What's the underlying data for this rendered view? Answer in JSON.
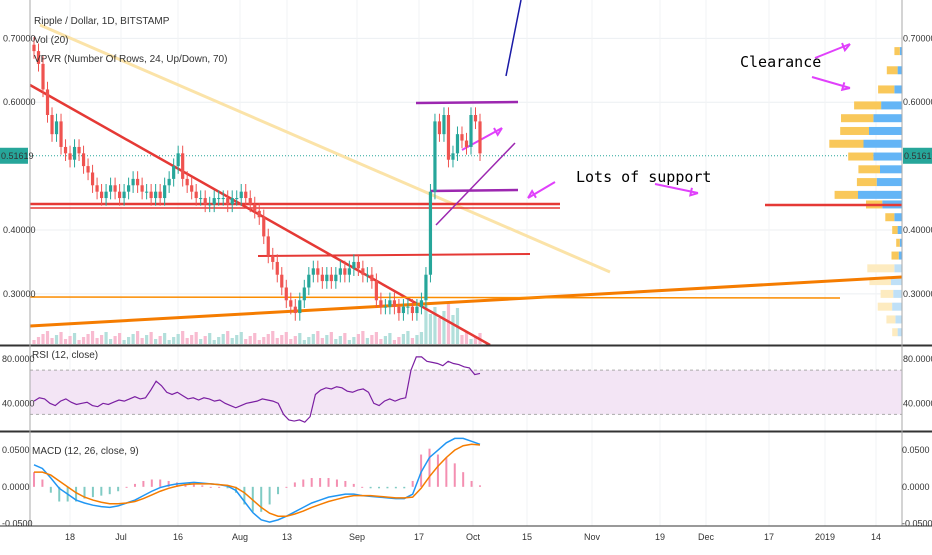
{
  "header": {
    "title": "Ripple / Dollar, 1D, BITSTAMP",
    "vol": "Vol (20)",
    "vpvr": "VPVR (Number Of Rows, 24, Up/Down, 70)",
    "rsi": "RSI (12, close)",
    "macd": "MACD (12, 26, close, 9)"
  },
  "price": {
    "last": "0.51619"
  },
  "annotations": {
    "clearance": "Clearance",
    "support": "Lots of support"
  },
  "colors": {
    "up": "#26a69a",
    "down": "#ef5350",
    "rsi": "#7b1fa2",
    "macd": "#2196f3",
    "signal": "#f57c00"
  },
  "chart_data": [
    {
      "type": "candlestick",
      "title": "Ripple / Dollar, 1D, BITSTAMP",
      "ylim": [
        0.22,
        0.76
      ],
      "y_ticks": [
        "0.70000",
        "0.60000",
        "0.40000",
        "0.30000"
      ],
      "x_ticks": [
        "18",
        "Jul",
        "16",
        "Aug",
        "13",
        "Sep",
        "17",
        "Oct",
        "15",
        "Nov",
        "19",
        "Dec",
        "17",
        "2019",
        "14"
      ],
      "close": [
        0.68,
        0.66,
        0.62,
        0.58,
        0.55,
        0.57,
        0.53,
        0.52,
        0.51,
        0.53,
        0.52,
        0.5,
        0.49,
        0.47,
        0.46,
        0.45,
        0.46,
        0.47,
        0.46,
        0.45,
        0.46,
        0.47,
        0.48,
        0.47,
        0.46,
        0.46,
        0.45,
        0.46,
        0.45,
        0.47,
        0.48,
        0.5,
        0.52,
        0.48,
        0.47,
        0.46,
        0.45,
        0.45,
        0.44,
        0.44,
        0.45,
        0.45,
        0.45,
        0.44,
        0.45,
        0.45,
        0.46,
        0.45,
        0.44,
        0.43,
        0.42,
        0.39,
        0.36,
        0.35,
        0.33,
        0.31,
        0.29,
        0.28,
        0.27,
        0.29,
        0.31,
        0.33,
        0.34,
        0.33,
        0.32,
        0.33,
        0.32,
        0.33,
        0.34,
        0.33,
        0.34,
        0.35,
        0.34,
        0.33,
        0.33,
        0.32,
        0.29,
        0.28,
        0.28,
        0.29,
        0.28,
        0.27,
        0.28,
        0.28,
        0.27,
        0.28,
        0.29,
        0.33,
        0.46,
        0.57,
        0.55,
        0.58,
        0.51,
        0.52,
        0.55,
        0.54,
        0.53,
        0.58,
        0.57,
        0.52
      ],
      "rsi": [
        42,
        45,
        44,
        40,
        38,
        42,
        44,
        41,
        39,
        40,
        41,
        38,
        37,
        40,
        39,
        41,
        43,
        42,
        44,
        46,
        44,
        45,
        52,
        60,
        56,
        50,
        48,
        50,
        47,
        44,
        45,
        43,
        45,
        44,
        42,
        43,
        40,
        38,
        36,
        38,
        40,
        41,
        42,
        44,
        43,
        42,
        40,
        30,
        25,
        24,
        25,
        23,
        28,
        48,
        52,
        54,
        53,
        55,
        54,
        51,
        50,
        52,
        53,
        50,
        40,
        38,
        42,
        44,
        42,
        44,
        45,
        70,
        82,
        82,
        78,
        77,
        76,
        74,
        78,
        76,
        75,
        73,
        72,
        66,
        67
      ],
      "rsi_ylim": [
        15,
        90
      ],
      "rsi_ticks": [
        "80.0000",
        "40.0000"
      ],
      "macd": [
        0.03,
        0.025,
        0.012,
        -0.002,
        -0.01,
        -0.018,
        -0.022,
        -0.025,
        -0.027,
        -0.028,
        -0.026,
        -0.022,
        -0.018,
        -0.012,
        -0.006,
        -0.001,
        0.002,
        0.004,
        0.005,
        0.006,
        0.005,
        0.004,
        0.003,
        0.001,
        -0.005,
        -0.02,
        -0.035,
        -0.045,
        -0.048,
        -0.045,
        -0.04,
        -0.034,
        -0.028,
        -0.022,
        -0.018,
        -0.014,
        -0.012,
        -0.01,
        -0.01,
        -0.012,
        -0.013,
        -0.014,
        -0.015,
        -0.016,
        -0.016,
        -0.01,
        0.02,
        0.04,
        0.05,
        0.06,
        0.066,
        0.066,
        0.062,
        0.058
      ],
      "signal": [
        0.02,
        0.02,
        0.016,
        0.008,
        0.0,
        -0.008,
        -0.014,
        -0.018,
        -0.021,
        -0.023,
        -0.023,
        -0.022,
        -0.02,
        -0.016,
        -0.011,
        -0.006,
        -0.002,
        0.001,
        0.003,
        0.004,
        0.004,
        0.004,
        0.003,
        0.002,
        -0.001,
        -0.008,
        -0.018,
        -0.028,
        -0.036,
        -0.04,
        -0.04,
        -0.037,
        -0.033,
        -0.028,
        -0.024,
        -0.02,
        -0.017,
        -0.014,
        -0.012,
        -0.012,
        -0.012,
        -0.013,
        -0.014,
        -0.015,
        -0.015,
        -0.014,
        -0.002,
        0.014,
        0.028,
        0.04,
        0.05,
        0.056,
        0.058,
        0.057
      ],
      "macd_ylim": [
        -0.052,
        0.072
      ],
      "macd_ticks": [
        "0.0500",
        "0.0000",
        "-0.0500"
      ]
    }
  ]
}
